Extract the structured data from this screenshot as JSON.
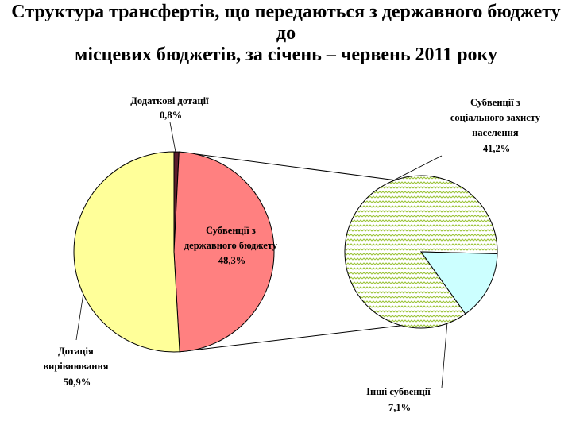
{
  "title": {
    "line1": "Структура трансфертів, що передаються з державного бюджету до",
    "line2": "місцевих бюджетів, за січень – червень 2011 року"
  },
  "chart_data": {
    "type": "pie",
    "variant": "pie-of-pie",
    "main_pie": [
      {
        "label": [
          "Додаткові дотації",
          "0,8%"
        ],
        "value": 0.8,
        "color": "#5a1e2c"
      },
      {
        "label": [
          "Субвенції з",
          "державного бюджету",
          "48,3%"
        ],
        "value": 48.3,
        "color": "#ff8080"
      },
      {
        "label": [
          "Дотація",
          "вирівнювання",
          "50,9%"
        ],
        "value": 50.9,
        "color": "#ffff99"
      }
    ],
    "secondary_pie": [
      {
        "label": [
          "Субвенції з",
          "соціального захисту",
          "населення",
          "41,2%"
        ],
        "value": 41.2,
        "color": "#a6cc3c",
        "pattern": "zigzag"
      },
      {
        "label": [
          "Інші субвенції",
          "7,1%"
        ],
        "value": 7.1,
        "color": "#ccffff"
      }
    ]
  }
}
